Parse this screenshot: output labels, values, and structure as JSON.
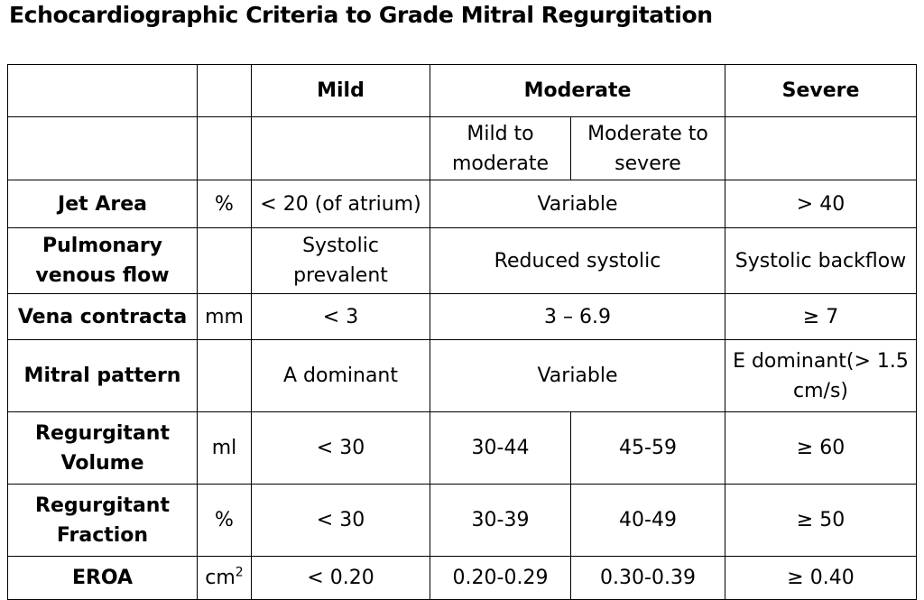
{
  "title": "Echocardiographic Criteria to Grade Mitral Regurgitation",
  "header": {
    "mild": "Mild",
    "moderate": "Moderate",
    "severe": "Severe",
    "sub_mild_to_moderate": "Mild to moderate",
    "sub_moderate_to_severe": "Moderate to severe"
  },
  "rows": {
    "jet_area": {
      "label": "Jet Area",
      "unit": "%",
      "mild": "< 20  (of atrium)",
      "moderate": "Variable",
      "severe": "> 40"
    },
    "pulmonary_venous_flow": {
      "label": "Pulmonary venous flow",
      "unit": "",
      "mild": "Systolic prevalent",
      "moderate": "Reduced systolic",
      "severe": "Systolic backflow"
    },
    "vena_contracta": {
      "label": "Vena contracta",
      "unit": "mm",
      "mild": "< 3",
      "moderate": "3 – 6.9",
      "severe": "≥ 7"
    },
    "mitral_pattern": {
      "label": "Mitral pattern",
      "unit": "",
      "mild": "A dominant",
      "moderate": "Variable",
      "severe": "E dominant(> 1.5 cm/s)"
    },
    "regurgitant_volume": {
      "label": "Regurgitant Volume",
      "unit": "ml",
      "mild": "< 30",
      "mild_to_moderate": "30-44",
      "moderate_to_severe": "45-59",
      "severe": "≥ 60"
    },
    "regurgitant_fraction": {
      "label": "Regurgitant Fraction",
      "unit": "%",
      "mild": "< 30",
      "mild_to_moderate": "30-39",
      "moderate_to_severe": "40-49",
      "severe": "≥ 50"
    },
    "eroa": {
      "label": "EROA",
      "unit": "cm",
      "unit_sup": "2",
      "mild": "< 0.20",
      "mild_to_moderate": "0.20-0.29",
      "moderate_to_severe": "0.30-0.39",
      "severe": "≥ 0.40"
    }
  }
}
